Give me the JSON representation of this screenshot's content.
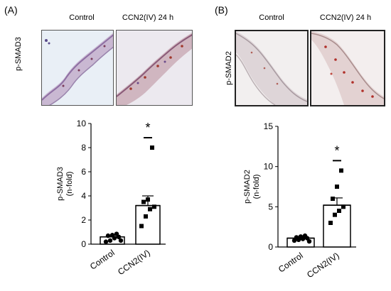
{
  "panels": [
    {
      "label": "(A)",
      "image_columns": [
        "Control",
        "CCN2(IV) 24 h"
      ],
      "image_row_label": "p-SMAD3"
    },
    {
      "label": "(B)",
      "image_columns": [
        "Control",
        "CCN2(IV) 24 h"
      ],
      "image_row_label": "p-SMAD2"
    }
  ],
  "chart_data": [
    {
      "type": "bar",
      "categories": [
        "Control",
        "CCN2(IV)"
      ],
      "values": [
        0.6,
        3.2
      ],
      "error": [
        0.15,
        0.8
      ],
      "points": [
        [
          0.2,
          0.3,
          0.5,
          0.6,
          0.7,
          0.75,
          0.85,
          0.3
        ],
        [
          1.5,
          2.3,
          2.9,
          3.1,
          3.5,
          3.7,
          8.0
        ]
      ],
      "ylabel": "p-SMAD3\n(n-fold)",
      "yticks": [
        0,
        2,
        4,
        6,
        8,
        10
      ],
      "ylim": [
        0,
        10
      ],
      "annotation": "*"
    },
    {
      "type": "bar",
      "categories": [
        "Control",
        "CCN2(IV)"
      ],
      "values": [
        1.1,
        5.2
      ],
      "error": [
        0.15,
        0.9
      ],
      "points": [
        [
          0.8,
          0.9,
          1.0,
          1.1,
          1.2,
          1.3,
          1.4,
          0.7
        ],
        [
          3.0,
          4.0,
          4.5,
          5.0,
          6.0,
          7.5,
          9.5
        ]
      ],
      "ylabel": "p-SMAD2\n(n-fold)",
      "yticks": [
        0,
        5,
        10,
        15
      ],
      "ylim": [
        0,
        15
      ],
      "annotation": "*"
    }
  ]
}
